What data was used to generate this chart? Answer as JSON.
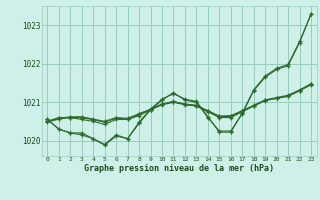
{
  "background_color": "#cff0e8",
  "plot_bg_color": "#cff0e8",
  "grid_color": "#99ccbb",
  "line_color": "#2d6b2d",
  "title": "Graphe pression niveau de la mer (hPa)",
  "title_color": "#1a4d1a",
  "xlim": [
    -0.5,
    23.5
  ],
  "ylim": [
    1019.6,
    1023.5
  ],
  "yticks": [
    1020,
    1021,
    1022,
    1023
  ],
  "xticks": [
    0,
    1,
    2,
    3,
    4,
    5,
    6,
    7,
    8,
    9,
    10,
    11,
    12,
    13,
    14,
    15,
    16,
    17,
    18,
    19,
    20,
    21,
    22,
    23
  ],
  "series": [
    [
      1020.55,
      1020.3,
      1020.2,
      1020.2,
      1020.05,
      1019.9,
      1020.15,
      1020.05,
      1020.45,
      1020.8,
      1021.05,
      1021.25,
      1021.05,
      1021.0,
      1020.6,
      1020.25,
      1020.25,
      1020.7,
      1021.3,
      1021.65,
      1021.85,
      1021.95,
      1022.55,
      1023.3
    ],
    [
      1020.55,
      1020.3,
      1020.2,
      1020.15,
      1020.05,
      1019.88,
      1020.12,
      1020.05,
      1020.48,
      1020.82,
      1021.08,
      1021.22,
      1021.08,
      1021.02,
      1020.62,
      1020.22,
      1020.22,
      1020.72,
      1021.32,
      1021.68,
      1021.88,
      1021.98,
      1022.58,
      1023.28
    ],
    [
      1020.5,
      1020.6,
      1020.6,
      1020.55,
      1020.5,
      1020.42,
      1020.55,
      1020.55,
      1020.65,
      1020.8,
      1020.95,
      1021.0,
      1020.95,
      1020.9,
      1020.75,
      1020.6,
      1020.6,
      1020.75,
      1020.9,
      1021.05,
      1021.1,
      1021.15,
      1021.3,
      1021.45
    ],
    [
      1020.5,
      1020.58,
      1020.62,
      1020.62,
      1020.56,
      1020.5,
      1020.6,
      1020.58,
      1020.7,
      1020.82,
      1020.95,
      1021.02,
      1020.95,
      1020.92,
      1020.78,
      1020.64,
      1020.65,
      1020.78,
      1020.92,
      1021.06,
      1021.12,
      1021.18,
      1021.32,
      1021.48
    ],
    [
      1020.48,
      1020.56,
      1020.6,
      1020.6,
      1020.54,
      1020.48,
      1020.58,
      1020.56,
      1020.68,
      1020.8,
      1020.93,
      1021.0,
      1020.93,
      1020.9,
      1020.76,
      1020.62,
      1020.63,
      1020.76,
      1020.9,
      1021.04,
      1021.1,
      1021.16,
      1021.3,
      1021.46
    ]
  ]
}
